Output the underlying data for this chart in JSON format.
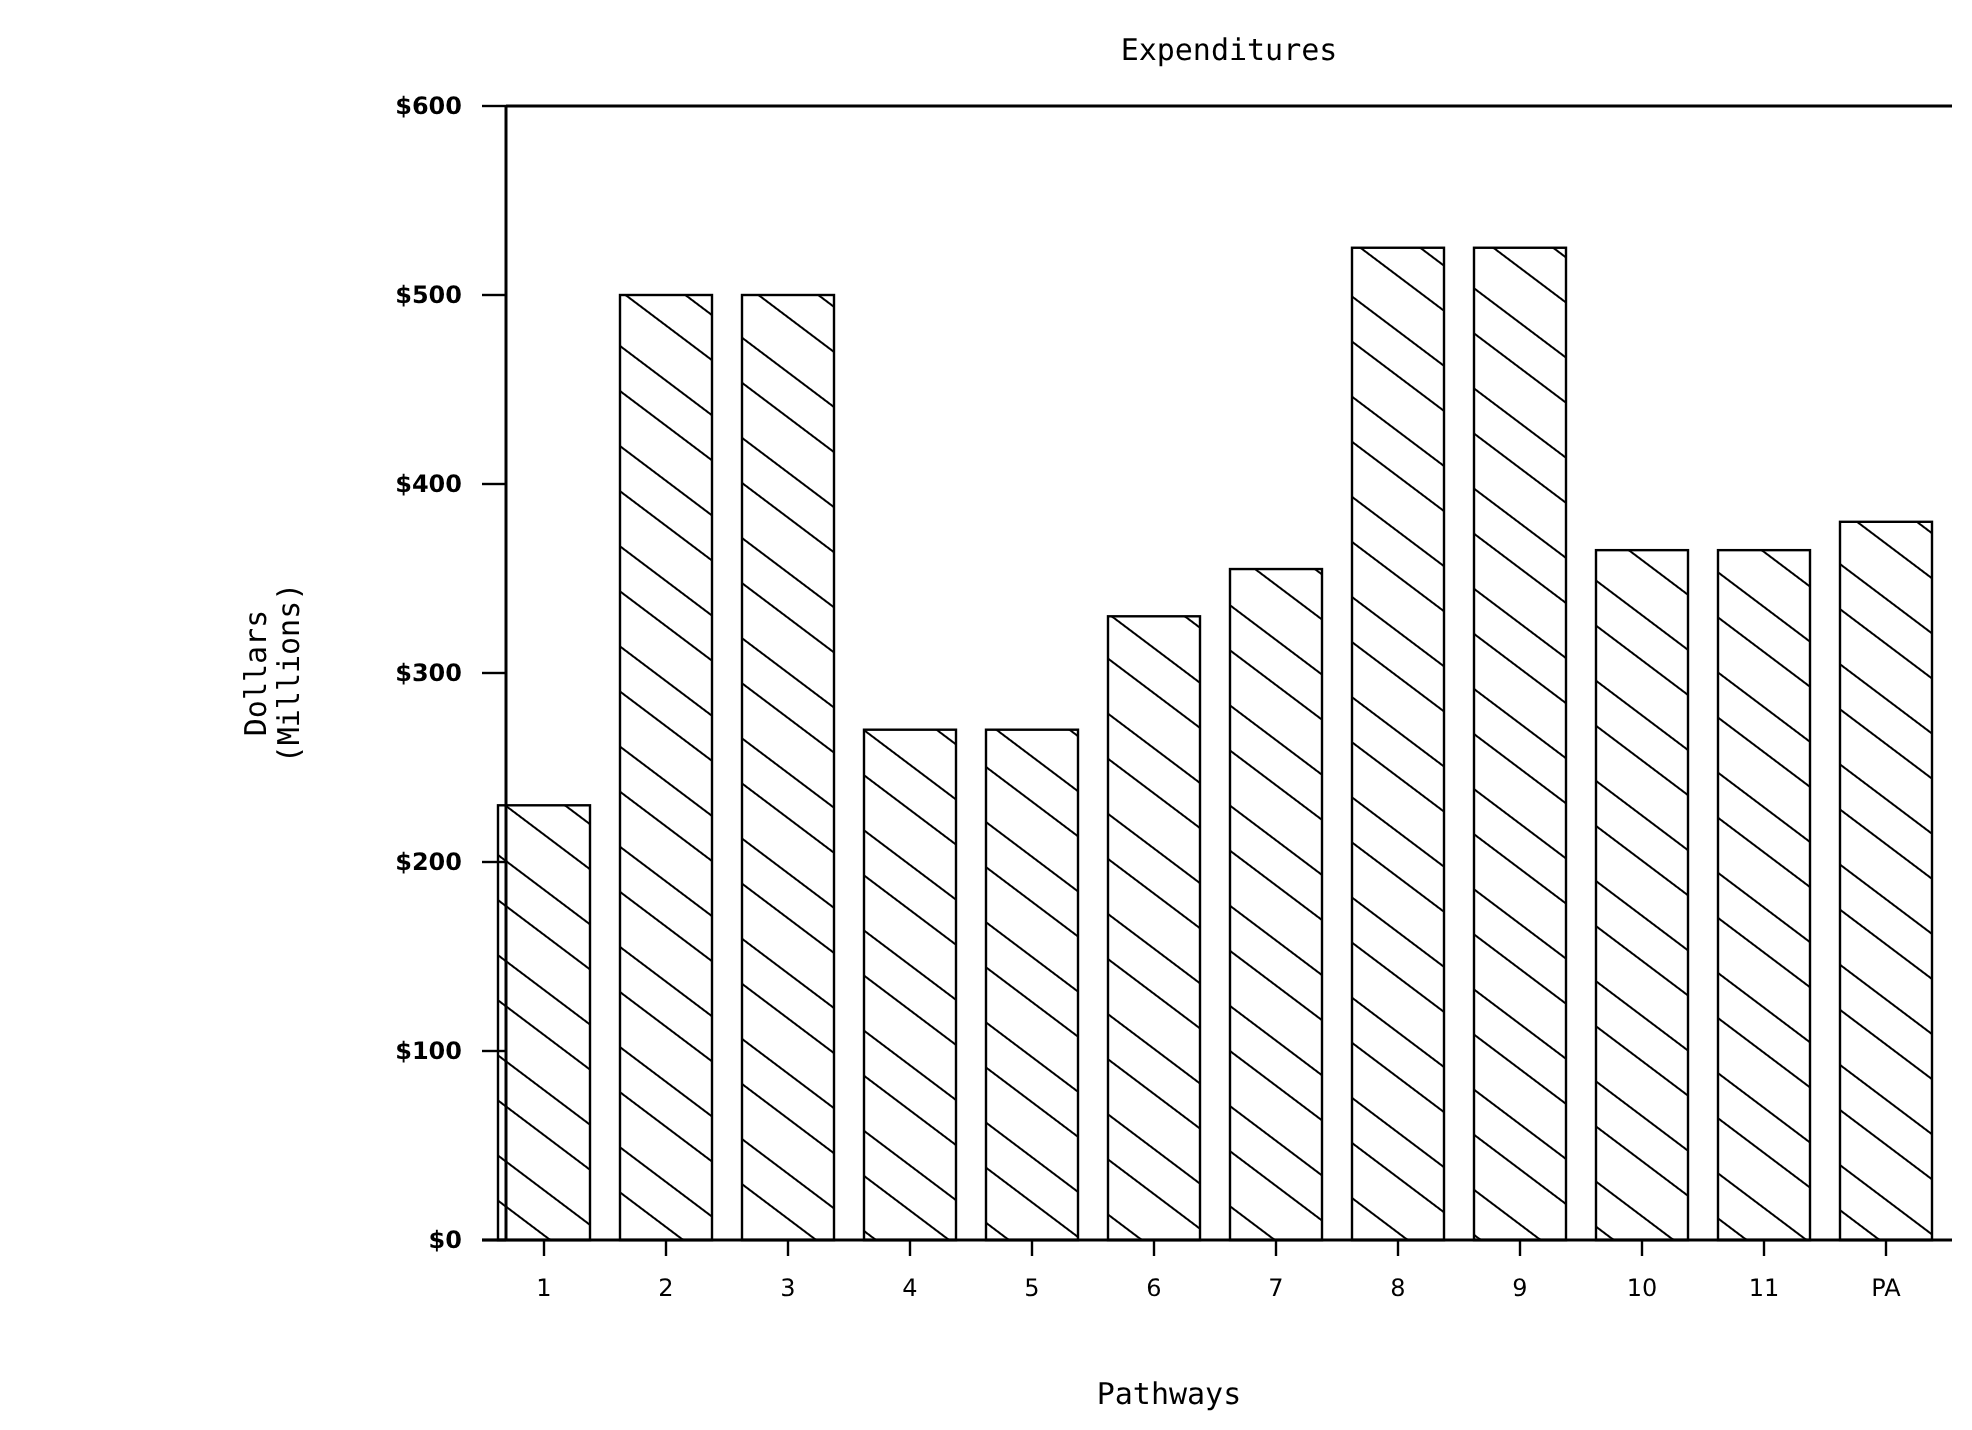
{
  "chart_data": {
    "type": "bar",
    "title": "Expenditures",
    "xlabel": "Pathways",
    "ylabel": "Dollars\n(Millions)",
    "categories": [
      "1",
      "2",
      "3",
      "4",
      "5",
      "6",
      "7",
      "8",
      "9",
      "10",
      "11",
      "PA"
    ],
    "values": [
      230,
      500,
      500,
      270,
      270,
      330,
      355,
      525,
      525,
      365,
      365,
      380
    ],
    "color": "#000000",
    "ylim": [
      0,
      600
    ],
    "yticks": [
      {
        "value": 0,
        "label": "$0"
      },
      {
        "value": 100,
        "label": "$100"
      },
      {
        "value": 200,
        "label": "$200"
      },
      {
        "value": 300,
        "label": "$300"
      },
      {
        "value": 400,
        "label": "$400"
      },
      {
        "value": 500,
        "label": "$500"
      },
      {
        "value": 600,
        "label": "$600"
      }
    ],
    "grid": false
  }
}
